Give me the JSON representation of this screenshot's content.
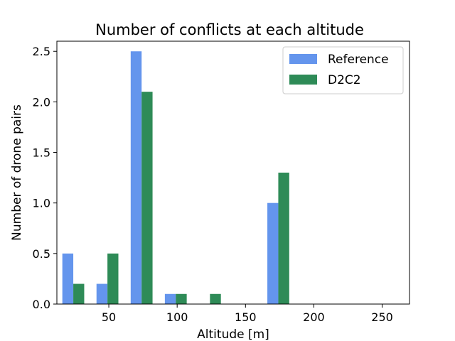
{
  "chart_data": {
    "type": "bar",
    "title": "Number of conflicts at each altitude",
    "xlabel": "Altitude [m]",
    "ylabel": "Number of drone pairs",
    "xlim": [
      12,
      270
    ],
    "ylim": [
      0,
      2.6
    ],
    "xticks": [
      50,
      100,
      150,
      200,
      250
    ],
    "yticks": [
      0.0,
      0.5,
      1.0,
      1.5,
      2.0,
      2.5
    ],
    "xtick_labels": [
      "50",
      "100",
      "150",
      "200",
      "250"
    ],
    "ytick_labels": [
      "0.0",
      "0.5",
      "1.0",
      "1.5",
      "2.0",
      "2.5"
    ],
    "bar_width": 8,
    "legend_position": "top-right",
    "grid": false,
    "series": [
      {
        "name": "Reference",
        "color": "#6495ED",
        "x": [
          20,
          45,
          70,
          95,
          120,
          170
        ],
        "values": [
          0.5,
          0.2,
          2.5,
          0.1,
          0.0,
          1.0
        ]
      },
      {
        "name": "D2C2",
        "color": "#2E8B57",
        "x": [
          28,
          53,
          78,
          103,
          128,
          178
        ],
        "values": [
          0.2,
          0.5,
          2.1,
          0.1,
          0.1,
          1.3
        ]
      }
    ]
  }
}
